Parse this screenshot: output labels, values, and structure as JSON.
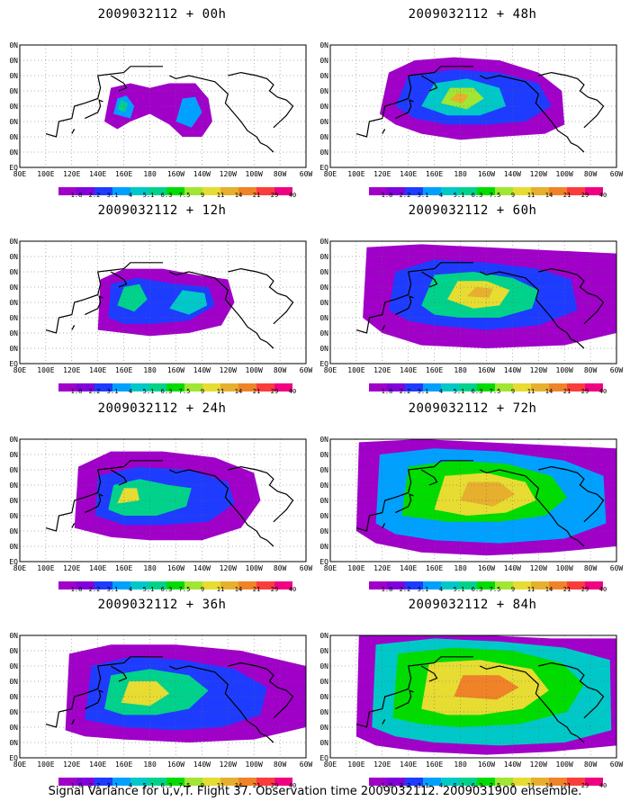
{
  "panels": [
    {
      "title": "2009032112 + 00h"
    },
    {
      "title": "2009032112 + 48h"
    },
    {
      "title": "2009032112 + 12h"
    },
    {
      "title": "2009032112 + 60h"
    },
    {
      "title": "2009032112 + 24h"
    },
    {
      "title": "2009032112 + 72h"
    },
    {
      "title": "2009032112 + 36h"
    },
    {
      "title": "2009032112 + 84h"
    }
  ],
  "lon_labels": [
    "80E",
    "100E",
    "120E",
    "140E",
    "160E",
    "180",
    "160W",
    "140W",
    "120W",
    "100W",
    "80W",
    "60W"
  ],
  "lat_labels": [
    "80N",
    "70N",
    "60N",
    "50N",
    "40N",
    "30N",
    "20N",
    "10N",
    "EQ"
  ],
  "colorbar": {
    "labels": [
      "1.8",
      "2.2",
      "3.1",
      "4",
      "5.1",
      "6.3",
      "7.5",
      "9",
      "11",
      "14",
      "21",
      "29",
      "40"
    ],
    "colors": [
      "#a000c8",
      "#8200dc",
      "#1e3cff",
      "#00a0ff",
      "#00c8c8",
      "#00d28c",
      "#00dc00",
      "#a0e632",
      "#e6dc32",
      "#e6af2d",
      "#f08228",
      "#fa3c3c",
      "#f00082"
    ]
  },
  "caption": "Signal Variance for u,v,T. Flight 37. Observation time 2009032112. 2009031900 ensemble."
}
